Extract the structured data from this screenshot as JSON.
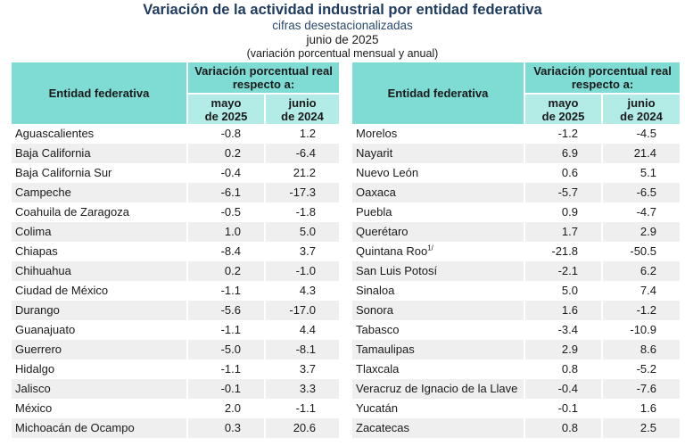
{
  "header": {
    "title": "Variación de la actividad industrial por entidad federativa",
    "subtitle": "cifras desestacionalizadas",
    "period": "junio de 2025",
    "note": "(variación porcentual mensual y anual)"
  },
  "columns": {
    "entity": "Entidad federativa",
    "variation": "Variación porcentual real respecto a:",
    "col1": [
      "mayo",
      "de 2025"
    ],
    "col2": [
      "junio",
      "de 2024"
    ]
  },
  "colors": {
    "header": "#7fdcd5",
    "subheader": "#b3ece7",
    "title": "#1f3a5f",
    "row_alt": "#efefef"
  },
  "left_rows": [
    {
      "entity": "Aguascalientes",
      "mayo_2025": "-0.8",
      "junio_2024": "1.2"
    },
    {
      "entity": "Baja California",
      "mayo_2025": "0.2",
      "junio_2024": "-6.4"
    },
    {
      "entity": "Baja California Sur",
      "mayo_2025": "-0.4",
      "junio_2024": "21.2"
    },
    {
      "entity": "Campeche",
      "mayo_2025": "-6.1",
      "junio_2024": "-17.3"
    },
    {
      "entity": "Coahuila de Zaragoza",
      "mayo_2025": "-0.5",
      "junio_2024": "-1.8"
    },
    {
      "entity": "Colima",
      "mayo_2025": "1.0",
      "junio_2024": "5.0"
    },
    {
      "entity": "Chiapas",
      "mayo_2025": "-8.4",
      "junio_2024": "3.7"
    },
    {
      "entity": "Chihuahua",
      "mayo_2025": "0.2",
      "junio_2024": "-1.0"
    },
    {
      "entity": "Ciudad de México",
      "mayo_2025": "-1.1",
      "junio_2024": "4.3"
    },
    {
      "entity": "Durango",
      "mayo_2025": "-5.6",
      "junio_2024": "-17.0"
    },
    {
      "entity": "Guanajuato",
      "mayo_2025": "-1.1",
      "junio_2024": "4.4"
    },
    {
      "entity": "Guerrero",
      "mayo_2025": "-5.0",
      "junio_2024": "-8.1"
    },
    {
      "entity": "Hidalgo",
      "mayo_2025": "-1.1",
      "junio_2024": "3.7"
    },
    {
      "entity": "Jalisco",
      "mayo_2025": "-0.1",
      "junio_2024": "3.3"
    },
    {
      "entity": "México",
      "mayo_2025": "2.0",
      "junio_2024": "-1.1"
    },
    {
      "entity": "Michoacán de Ocampo",
      "mayo_2025": "0.3",
      "junio_2024": "20.6"
    }
  ],
  "right_rows": [
    {
      "entity": "Morelos",
      "mayo_2025": "-1.2",
      "junio_2024": "-4.5"
    },
    {
      "entity": "Nayarit",
      "mayo_2025": "6.9",
      "junio_2024": "21.4"
    },
    {
      "entity": "Nuevo León",
      "mayo_2025": "0.6",
      "junio_2024": "5.1"
    },
    {
      "entity": "Oaxaca",
      "mayo_2025": "-5.7",
      "junio_2024": "-6.5"
    },
    {
      "entity": "Puebla",
      "mayo_2025": "0.9",
      "junio_2024": "-4.7"
    },
    {
      "entity": "Querétaro",
      "mayo_2025": "1.7",
      "junio_2024": "2.9"
    },
    {
      "entity": "Quintana Roo",
      "footnote": "1/",
      "mayo_2025": "-21.8",
      "junio_2024": "-50.5"
    },
    {
      "entity": "San Luis Potosí",
      "mayo_2025": "-2.1",
      "junio_2024": "6.2"
    },
    {
      "entity": "Sinaloa",
      "mayo_2025": "5.0",
      "junio_2024": "7.4"
    },
    {
      "entity": "Sonora",
      "mayo_2025": "1.6",
      "junio_2024": "-1.2"
    },
    {
      "entity": "Tabasco",
      "mayo_2025": "-3.4",
      "junio_2024": "-10.9"
    },
    {
      "entity": "Tamaulipas",
      "mayo_2025": "2.9",
      "junio_2024": "8.6"
    },
    {
      "entity": "Tlaxcala",
      "mayo_2025": "0.8",
      "junio_2024": "-5.2"
    },
    {
      "entity": "Veracruz de Ignacio de la Llave",
      "mayo_2025": "-0.4",
      "junio_2024": "-7.6"
    },
    {
      "entity": "Yucatán",
      "mayo_2025": "-0.1",
      "junio_2024": "1.6"
    },
    {
      "entity": "Zacatecas",
      "mayo_2025": "0.8",
      "junio_2024": "2.5"
    }
  ]
}
